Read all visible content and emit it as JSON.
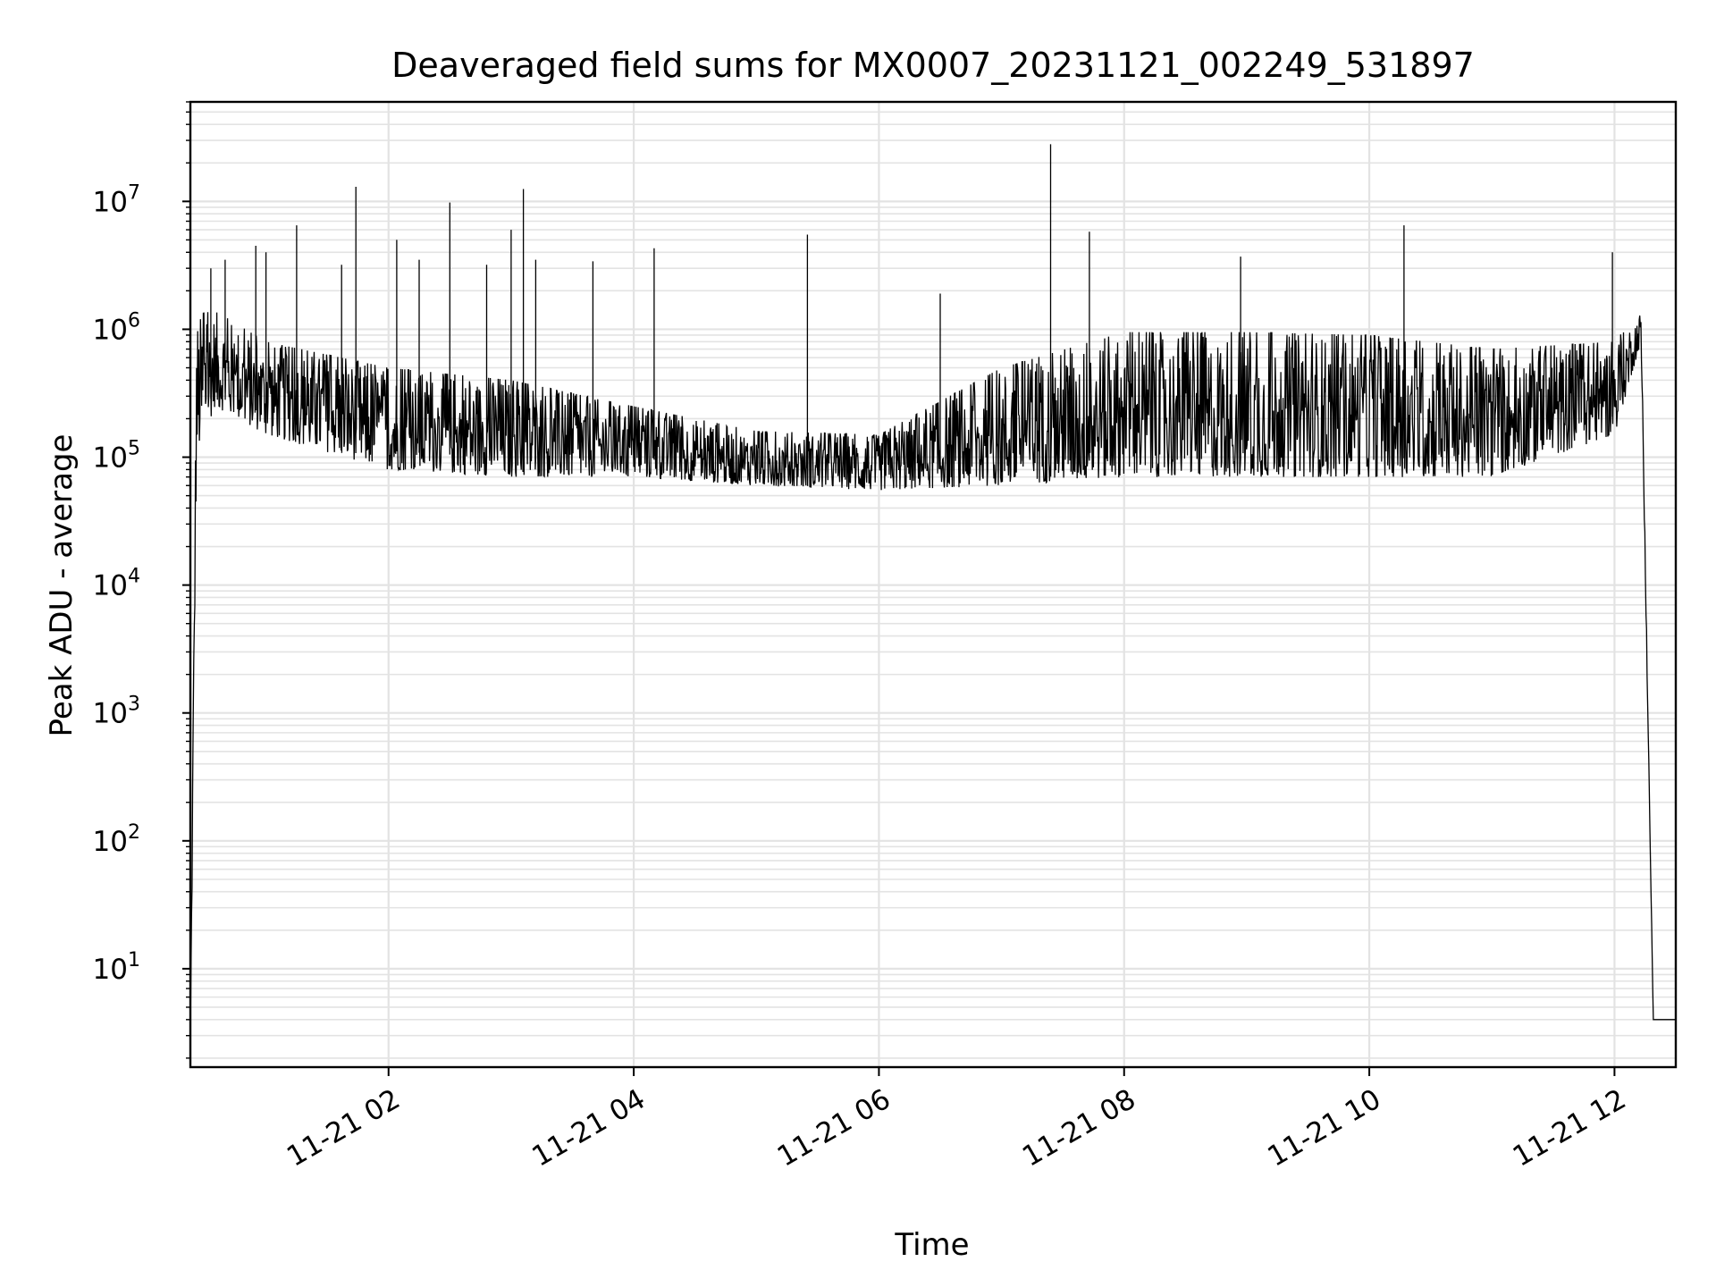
{
  "chart_data": {
    "type": "line",
    "title": "Deaveraged field sums for MX0007_20231121_002249_531897",
    "xlabel": "Time",
    "ylabel": "Peak ADU - average",
    "yscale": "log",
    "ylim": [
      1.7,
      60000000
    ],
    "xlim": [
      "2023-11-21 00:23",
      "2023-11-21 12:30"
    ],
    "grid": true,
    "line_color": "#000000",
    "grid_color": "#e3e3e3",
    "x_ticks": [
      {
        "label": "11-21 02",
        "value": "2023-11-21 02:00"
      },
      {
        "label": "11-21 04",
        "value": "2023-11-21 04:00"
      },
      {
        "label": "11-21 06",
        "value": "2023-11-21 06:00"
      },
      {
        "label": "11-21 08",
        "value": "2023-11-21 08:00"
      },
      {
        "label": "11-21 10",
        "value": "2023-11-21 10:00"
      },
      {
        "label": "11-21 12",
        "value": "2023-11-21 12:00"
      }
    ],
    "y_ticks": [
      {
        "base": "10",
        "exp": "1",
        "value": 10
      },
      {
        "base": "10",
        "exp": "2",
        "value": 100
      },
      {
        "base": "10",
        "exp": "3",
        "value": 1000
      },
      {
        "base": "10",
        "exp": "4",
        "value": 10000
      },
      {
        "base": "10",
        "exp": "5",
        "value": 100000
      },
      {
        "base": "10",
        "exp": "6",
        "value": 1000000
      },
      {
        "base": "10",
        "exp": "7",
        "value": 10000000
      }
    ],
    "series": [
      {
        "baseline_envelope": [
          {
            "t": "2023-11-21 00:23",
            "low": 2,
            "high": 4
          },
          {
            "t": "2023-11-21 00:26",
            "low": 100000,
            "high": 1300000
          },
          {
            "t": "2023-11-21 00:35",
            "low": 250000,
            "high": 1400000
          },
          {
            "t": "2023-11-21 01:00",
            "low": 150000,
            "high": 800000
          },
          {
            "t": "2023-11-21 02:00",
            "low": 80000,
            "high": 500000
          },
          {
            "t": "2023-11-21 03:00",
            "low": 70000,
            "high": 400000
          },
          {
            "t": "2023-11-21 04:00",
            "low": 70000,
            "high": 250000
          },
          {
            "t": "2023-11-21 05:00",
            "low": 60000,
            "high": 160000
          },
          {
            "t": "2023-11-21 06:00",
            "low": 55000,
            "high": 150000
          },
          {
            "t": "2023-11-21 07:00",
            "low": 60000,
            "high": 500000
          },
          {
            "t": "2023-11-21 08:00",
            "low": 70000,
            "high": 950000
          },
          {
            "t": "2023-11-21 09:00",
            "low": 70000,
            "high": 950000
          },
          {
            "t": "2023-11-21 10:00",
            "low": 70000,
            "high": 900000
          },
          {
            "t": "2023-11-21 11:00",
            "low": 70000,
            "high": 700000
          },
          {
            "t": "2023-11-21 12:00",
            "low": 150000,
            "high": 800000
          },
          {
            "t": "2023-11-21 12:13",
            "low": 800000,
            "high": 1400000
          },
          {
            "t": "2023-11-21 12:19",
            "low": 4,
            "high": 4
          },
          {
            "t": "2023-11-21 12:30",
            "low": 4,
            "high": 4
          }
        ],
        "spikes": [
          {
            "t": "2023-11-21 00:33",
            "v": 3000000
          },
          {
            "t": "2023-11-21 00:40",
            "v": 3500000
          },
          {
            "t": "2023-11-21 00:55",
            "v": 4500000
          },
          {
            "t": "2023-11-21 01:00",
            "v": 4000000
          },
          {
            "t": "2023-11-21 01:15",
            "v": 6500000
          },
          {
            "t": "2023-11-21 01:37",
            "v": 3200000
          },
          {
            "t": "2023-11-21 01:44",
            "v": 13000000
          },
          {
            "t": "2023-11-21 02:04",
            "v": 5000000
          },
          {
            "t": "2023-11-21 02:15",
            "v": 3500000
          },
          {
            "t": "2023-11-21 02:30",
            "v": 9800000
          },
          {
            "t": "2023-11-21 02:48",
            "v": 3200000
          },
          {
            "t": "2023-11-21 03:00",
            "v": 6000000
          },
          {
            "t": "2023-11-21 03:06",
            "v": 12500000
          },
          {
            "t": "2023-11-21 03:12",
            "v": 3500000
          },
          {
            "t": "2023-11-21 03:40",
            "v": 3400000
          },
          {
            "t": "2023-11-21 04:10",
            "v": 4300000
          },
          {
            "t": "2023-11-21 05:25",
            "v": 5500000
          },
          {
            "t": "2023-11-21 06:30",
            "v": 1900000
          },
          {
            "t": "2023-11-21 07:24",
            "v": 28000000
          },
          {
            "t": "2023-11-21 07:43",
            "v": 5800000
          },
          {
            "t": "2023-11-21 08:57",
            "v": 3700000
          },
          {
            "t": "2023-11-21 10:17",
            "v": 6500000
          },
          {
            "t": "2023-11-21 11:59",
            "v": 4000000
          }
        ]
      }
    ]
  }
}
